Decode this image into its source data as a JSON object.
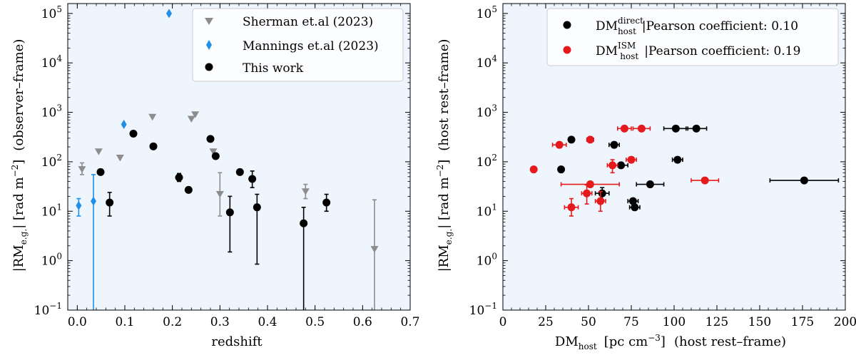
{
  "chart_data": [
    {
      "type": "scatter",
      "xlabel": "redshift",
      "ylabel": {
        "main": "|RM",
        "sub": "e.g.",
        "units": "| [rad m",
        "sup": "−2",
        "close": "]",
        "frame": "(observer–frame)"
      },
      "xlim": [
        -0.02,
        0.7
      ],
      "ylim_log10": [
        -1,
        5.2
      ],
      "x_ticks": [
        "0.0",
        "0.1",
        "0.2",
        "0.3",
        "0.4",
        "0.5",
        "0.6",
        "0.7"
      ],
      "x_tick_values": [
        0,
        0.1,
        0.2,
        0.3,
        0.4,
        0.5,
        0.6,
        0.7
      ],
      "y_ticks": [
        {
          "value": -1,
          "base": "10",
          "exp": "−1"
        },
        {
          "value": 0,
          "base": "10",
          "exp": "0"
        },
        {
          "value": 1,
          "base": "10",
          "exp": "1"
        },
        {
          "value": 2,
          "base": "10",
          "exp": "2"
        },
        {
          "value": 3,
          "base": "10",
          "exp": "3"
        },
        {
          "value": 4,
          "base": "10",
          "exp": "4"
        },
        {
          "value": 5,
          "base": "10",
          "exp": "5"
        }
      ],
      "background": "#eef5fd",
      "legend": {
        "position": "top-right",
        "entries": [
          "Sherman et.al (2023)",
          "Mannings et.al (2023)",
          "This work"
        ]
      },
      "series": [
        {
          "name": "Sherman et.al (2023)",
          "marker": "triangle-down",
          "color": "#8c8c8c",
          "points": [
            {
              "x": 0.01,
              "y": 70,
              "lo": 55,
              "hi": 95
            },
            {
              "x": 0.045,
              "y": 160
            },
            {
              "x": 0.09,
              "y": 120
            },
            {
              "x": 0.158,
              "y": 800
            },
            {
              "x": 0.24,
              "y": 730
            },
            {
              "x": 0.248,
              "y": 900
            },
            {
              "x": 0.286,
              "y": 160
            },
            {
              "x": 0.3,
              "y": 22,
              "lo": 8,
              "hi": 60
            },
            {
              "x": 0.48,
              "y": 25,
              "lo": 18,
              "hi": 35
            },
            {
              "x": 0.625,
              "y": 1.7,
              "lo": 0.1,
              "hi": 17
            }
          ]
        },
        {
          "name": "Mannings et.al (2023)",
          "marker": "diamond",
          "color": "#1f8fe8",
          "points": [
            {
              "x": 0.003,
              "y": 13,
              "lo": 8,
              "hi": 18
            },
            {
              "x": 0.034,
              "y": 16,
              "lo": 0.1,
              "hi": 55
            },
            {
              "x": 0.098,
              "y": 570
            },
            {
              "x": 0.193,
              "y": 100000
            }
          ]
        },
        {
          "name": "This work",
          "marker": "circle",
          "color": "#000000",
          "points": [
            {
              "x": 0.049,
              "y": 62
            },
            {
              "x": 0.068,
              "y": 15,
              "lo": 8,
              "hi": 24
            },
            {
              "x": 0.118,
              "y": 370
            },
            {
              "x": 0.16,
              "y": 205
            },
            {
              "x": 0.214,
              "y": 48,
              "lo": 40,
              "hi": 58
            },
            {
              "x": 0.234,
              "y": 27
            },
            {
              "x": 0.28,
              "y": 290
            },
            {
              "x": 0.291,
              "y": 130
            },
            {
              "x": 0.321,
              "y": 9.5,
              "lo": 1.5,
              "hi": 20
            },
            {
              "x": 0.342,
              "y": 62
            },
            {
              "x": 0.368,
              "y": 45,
              "lo": 30,
              "hi": 65
            },
            {
              "x": 0.378,
              "y": 12,
              "lo": 0.85,
              "hi": 22
            },
            {
              "x": 0.476,
              "y": 5.7,
              "lo": 0.1,
              "hi": 12
            },
            {
              "x": 0.524,
              "y": 15,
              "lo": 10,
              "hi": 22
            }
          ]
        }
      ]
    },
    {
      "type": "scatter",
      "xlabel": {
        "main": "DM",
        "sub": "host",
        "units": "[pc cm",
        "sup": "−3",
        "close": "]",
        "frame": "(host rest–frame)"
      },
      "ylabel": {
        "main": "|RM",
        "sub": "e.g.",
        "units": "| [rad m",
        "sup": "−2",
        "close": "]",
        "frame": "(host rest–frame)"
      },
      "xlim": [
        0,
        200
      ],
      "ylim_log10": [
        -1,
        5.2
      ],
      "x_ticks": [
        "0",
        "25",
        "50",
        "75",
        "100",
        "125",
        "150",
        "175",
        "200"
      ],
      "x_tick_values": [
        0,
        25,
        50,
        75,
        100,
        125,
        150,
        175,
        200
      ],
      "y_ticks": [
        {
          "value": -1,
          "base": "10",
          "exp": "−1"
        },
        {
          "value": 0,
          "base": "10",
          "exp": "0"
        },
        {
          "value": 1,
          "base": "10",
          "exp": "1"
        },
        {
          "value": 2,
          "base": "10",
          "exp": "2"
        },
        {
          "value": 3,
          "base": "10",
          "exp": "3"
        },
        {
          "value": 4,
          "base": "10",
          "exp": "4"
        },
        {
          "value": 5,
          "base": "10",
          "exp": "5"
        }
      ],
      "background": "#eef5fd",
      "legend": {
        "position": "top-right",
        "entries": [
          {
            "main": "DM",
            "sup": "direct",
            "sub": "host",
            "text": "|Pearson coefficient: 0.10"
          },
          {
            "main": "DM",
            "sup": "ISM",
            "sub": "host",
            "text": "|Pearson coefficient: 0.19"
          }
        ]
      },
      "series": [
        {
          "name": "DM_host^direct",
          "marker": "circle",
          "color": "#000000",
          "points": [
            {
              "x": 34,
              "y": 70
            },
            {
              "x": 40,
              "y": 280
            },
            {
              "x": 58,
              "y": 23,
              "xerr": 4,
              "lo": 17,
              "hi": 30
            },
            {
              "x": 65,
              "y": 220,
              "xerr": 3
            },
            {
              "x": 69,
              "y": 85,
              "xerr": 4
            },
            {
              "x": 76,
              "y": 16,
              "xerr": 3
            },
            {
              "x": 77,
              "y": 12,
              "xerr": 3
            },
            {
              "x": 86,
              "y": 35,
              "xerr": 8
            },
            {
              "x": 101,
              "y": 470,
              "xerr": 7
            },
            {
              "x": 102,
              "y": 110,
              "xerr": 3
            },
            {
              "x": 113,
              "y": 470,
              "xerr": 6
            },
            {
              "x": 176,
              "y": 42,
              "xerr": 20
            }
          ]
        },
        {
          "name": "DM_host^ISM",
          "marker": "circle",
          "color": "#e41a1c",
          "points": [
            {
              "x": 18,
              "y": 70
            },
            {
              "x": 33,
              "y": 220,
              "xerr": 4
            },
            {
              "x": 40,
              "y": 12,
              "xerr": 4,
              "lo": 8,
              "hi": 18
            },
            {
              "x": 49,
              "y": 23,
              "xerr": 3,
              "lo": 14,
              "hi": 34
            },
            {
              "x": 51,
              "y": 280,
              "xerr": 2
            },
            {
              "x": 51,
              "y": 35,
              "xerr": 17
            },
            {
              "x": 57,
              "y": 16,
              "xerr": 3,
              "lo": 10,
              "hi": 25
            },
            {
              "x": 64,
              "y": 85,
              "xerr": 3,
              "lo": 60,
              "hi": 110
            },
            {
              "x": 71,
              "y": 470,
              "xerr": 4
            },
            {
              "x": 75,
              "y": 110,
              "xerr": 3
            },
            {
              "x": 81,
              "y": 470,
              "xerr": 5
            },
            {
              "x": 118,
              "y": 42,
              "xerr": 8
            }
          ]
        }
      ]
    }
  ]
}
